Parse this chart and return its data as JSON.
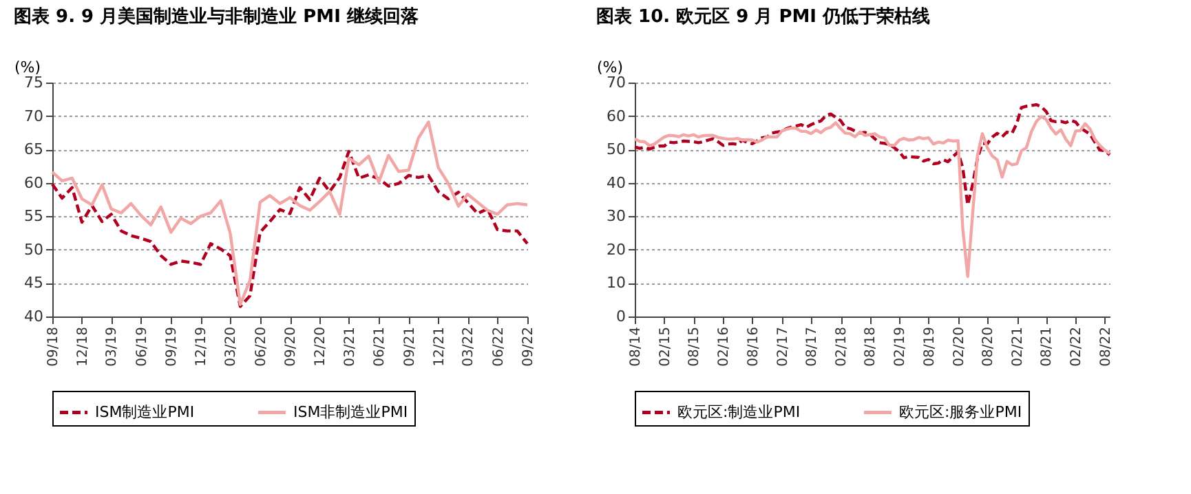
{
  "chart_data": [
    {
      "type": "line",
      "title": "图表 9. 9 月美国制造业与非制造业 PMI 继续回落",
      "ylabel": "(%)",
      "x": [
        "2018-09",
        "2018-10",
        "2018-11",
        "2018-12",
        "2019-01",
        "2019-02",
        "2019-03",
        "2019-04",
        "2019-05",
        "2019-06",
        "2019-07",
        "2019-08",
        "2019-09",
        "2019-10",
        "2019-11",
        "2019-12",
        "2020-01",
        "2020-02",
        "2020-03",
        "2020-04",
        "2020-05",
        "2020-06",
        "2020-07",
        "2020-08",
        "2020-09",
        "2020-10",
        "2020-11",
        "2020-12",
        "2021-01",
        "2021-02",
        "2021-03",
        "2021-04",
        "2021-05",
        "2021-06",
        "2021-07",
        "2021-08",
        "2021-09",
        "2021-10",
        "2021-11",
        "2021-12",
        "2022-01",
        "2022-02",
        "2022-03",
        "2022-04",
        "2022-05",
        "2022-06",
        "2022-07",
        "2022-08",
        "2022-09"
      ],
      "series": [
        {
          "name": "ISM制造业PMI",
          "color": "#b00020",
          "line_style": "dashed",
          "values": [
            59.8,
            57.7,
            59.3,
            54.1,
            56.6,
            54.2,
            55.3,
            52.8,
            52.1,
            51.7,
            51.2,
            49.1,
            47.8,
            48.3,
            48.1,
            47.8,
            50.9,
            50.1,
            49.1,
            41.5,
            43.1,
            52.6,
            54.2,
            56.0,
            55.4,
            59.3,
            57.5,
            60.7,
            58.7,
            60.8,
            64.7,
            60.7,
            61.2,
            60.6,
            59.5,
            59.9,
            61.1,
            60.8,
            61.1,
            58.7,
            57.6,
            58.6,
            57.1,
            55.4,
            56.1,
            53.0,
            52.8,
            52.8,
            50.9
          ]
        },
        {
          "name": "ISM非制造业PMI",
          "color": "#f2a7a7",
          "line_style": "solid",
          "values": [
            61.6,
            60.3,
            60.7,
            57.6,
            56.7,
            59.7,
            56.1,
            55.5,
            56.9,
            55.1,
            53.7,
            56.4,
            52.6,
            54.7,
            53.9,
            55.0,
            55.5,
            57.3,
            52.5,
            41.8,
            45.4,
            57.1,
            58.1,
            56.9,
            57.8,
            56.6,
            55.9,
            57.2,
            58.7,
            55.3,
            63.7,
            62.7,
            64.0,
            60.1,
            64.1,
            61.7,
            61.9,
            66.7,
            69.1,
            62.3,
            59.9,
            56.5,
            58.3,
            57.1,
            55.9,
            55.3,
            56.7,
            56.9,
            56.7
          ]
        }
      ],
      "xlim": [
        "2018-09",
        "2022-09"
      ],
      "xticks": [
        {
          "value": "2018-09",
          "label": "09/18"
        },
        {
          "value": "2018-12",
          "label": "12/18"
        },
        {
          "value": "2019-03",
          "label": "03/19"
        },
        {
          "value": "2019-06",
          "label": "06/19"
        },
        {
          "value": "2019-09",
          "label": "09/19"
        },
        {
          "value": "2019-12",
          "label": "12/19"
        },
        {
          "value": "2020-03",
          "label": "03/20"
        },
        {
          "value": "2020-06",
          "label": "06/20"
        },
        {
          "value": "2020-09",
          "label": "09/20"
        },
        {
          "value": "2020-12",
          "label": "12/20"
        },
        {
          "value": "2021-03",
          "label": "03/21"
        },
        {
          "value": "2021-06",
          "label": "06/21"
        },
        {
          "value": "2021-09",
          "label": "09/21"
        },
        {
          "value": "2021-12",
          "label": "12/21"
        },
        {
          "value": "2022-03",
          "label": "03/22"
        },
        {
          "value": "2022-06",
          "label": "06/22"
        },
        {
          "value": "2022-09",
          "label": "09/22"
        }
      ],
      "ylim": [
        40,
        75
      ],
      "yticks": [
        40,
        45,
        50,
        55,
        60,
        65,
        70,
        75
      ],
      "grid": "y",
      "legend": "bottom",
      "marker": "none"
    },
    {
      "type": "line",
      "title": "图表 10. 欧元区 9 月 PMI 仍低于荣枯线",
      "ylabel": "(%)",
      "x": [
        "2014-08",
        "2014-09",
        "2014-10",
        "2014-11",
        "2014-12",
        "2015-01",
        "2015-02",
        "2015-03",
        "2015-04",
        "2015-05",
        "2015-06",
        "2015-07",
        "2015-08",
        "2015-09",
        "2015-10",
        "2015-11",
        "2015-12",
        "2016-01",
        "2016-02",
        "2016-03",
        "2016-04",
        "2016-05",
        "2016-06",
        "2016-07",
        "2016-08",
        "2016-09",
        "2016-10",
        "2016-11",
        "2016-12",
        "2017-01",
        "2017-02",
        "2017-03",
        "2017-04",
        "2017-05",
        "2017-06",
        "2017-07",
        "2017-08",
        "2017-09",
        "2017-10",
        "2017-11",
        "2017-12",
        "2018-01",
        "2018-02",
        "2018-03",
        "2018-04",
        "2018-05",
        "2018-06",
        "2018-07",
        "2018-08",
        "2018-09",
        "2018-10",
        "2018-11",
        "2018-12",
        "2019-01",
        "2019-02",
        "2019-03",
        "2019-04",
        "2019-05",
        "2019-06",
        "2019-07",
        "2019-08",
        "2019-09",
        "2019-10",
        "2019-11",
        "2019-12",
        "2020-01",
        "2020-02",
        "2020-03",
        "2020-04",
        "2020-05",
        "2020-06",
        "2020-07",
        "2020-08",
        "2020-09",
        "2020-10",
        "2020-11",
        "2020-12",
        "2021-01",
        "2021-02",
        "2021-03",
        "2021-04",
        "2021-05",
        "2021-06",
        "2021-07",
        "2021-08",
        "2021-09",
        "2021-10",
        "2021-11",
        "2021-12",
        "2022-01",
        "2022-02",
        "2022-03",
        "2022-04",
        "2022-05",
        "2022-06",
        "2022-07",
        "2022-08",
        "2022-09"
      ],
      "series": [
        {
          "name": "欧元区:制造业PMI",
          "color": "#b00020",
          "line_style": "dashed",
          "values": [
            50.7,
            50.3,
            50.6,
            50.1,
            50.6,
            51.0,
            51.0,
            52.2,
            52.0,
            52.2,
            52.5,
            52.4,
            52.3,
            52.0,
            52.3,
            52.8,
            53.2,
            52.3,
            51.2,
            51.6,
            51.7,
            51.5,
            52.8,
            52.0,
            51.7,
            52.6,
            53.5,
            53.7,
            54.9,
            55.2,
            55.4,
            56.2,
            56.7,
            57.0,
            57.4,
            56.6,
            57.4,
            58.1,
            58.5,
            60.1,
            60.6,
            59.6,
            58.6,
            56.6,
            56.2,
            55.5,
            54.9,
            55.1,
            54.6,
            53.2,
            52.0,
            51.8,
            51.4,
            50.5,
            49.3,
            47.5,
            47.9,
            47.7,
            47.6,
            46.5,
            47.0,
            45.7,
            45.9,
            46.9,
            46.3,
            47.9,
            49.2,
            44.5,
            33.4,
            39.4,
            47.4,
            51.8,
            51.7,
            53.7,
            54.8,
            53.8,
            55.2,
            54.8,
            57.9,
            62.5,
            62.9,
            63.1,
            63.4,
            62.8,
            61.4,
            58.6,
            58.3,
            58.4,
            58.0,
            58.7,
            58.2,
            56.5,
            55.5,
            54.6,
            52.1,
            49.8,
            49.6,
            48.4
          ]
        },
        {
          "name": "欧元区:服务业PMI",
          "color": "#f2a7a7",
          "line_style": "solid",
          "values": [
            53.1,
            52.4,
            52.3,
            51.1,
            51.6,
            52.7,
            53.7,
            54.2,
            54.1,
            53.8,
            54.4,
            54.0,
            54.4,
            53.7,
            54.1,
            54.2,
            54.2,
            53.6,
            53.3,
            53.1,
            53.1,
            53.3,
            52.8,
            52.9,
            52.8,
            52.2,
            52.8,
            53.8,
            53.7,
            53.7,
            55.5,
            56.0,
            56.4,
            56.3,
            55.4,
            55.4,
            54.7,
            55.8,
            55.0,
            56.2,
            56.6,
            58.0,
            56.2,
            54.9,
            54.7,
            53.8,
            55.2,
            54.2,
            54.4,
            54.7,
            53.7,
            53.4,
            51.2,
            51.2,
            52.8,
            53.3,
            52.8,
            52.9,
            53.6,
            53.2,
            53.5,
            51.6,
            52.2,
            51.9,
            52.8,
            52.5,
            52.6,
            26.4,
            12.0,
            30.5,
            48.3,
            54.7,
            50.5,
            48.0,
            46.9,
            41.7,
            46.4,
            45.4,
            45.7,
            49.6,
            50.5,
            55.2,
            58.3,
            59.8,
            59.0,
            56.4,
            54.6,
            55.9,
            53.1,
            51.1,
            55.5,
            55.6,
            57.7,
            56.1,
            53.0,
            51.2,
            49.8,
            48.8
          ]
        }
      ],
      "xlim": [
        "2014-08",
        "2022-09"
      ],
      "xticks": [
        {
          "value": "2014-08",
          "label": "08/14"
        },
        {
          "value": "2015-02",
          "label": "02/15"
        },
        {
          "value": "2015-08",
          "label": "08/15"
        },
        {
          "value": "2016-02",
          "label": "02/16"
        },
        {
          "value": "2016-08",
          "label": "08/16"
        },
        {
          "value": "2017-02",
          "label": "02/17"
        },
        {
          "value": "2017-08",
          "label": "08/17"
        },
        {
          "value": "2018-02",
          "label": "02/18"
        },
        {
          "value": "2018-08",
          "label": "08/18"
        },
        {
          "value": "2019-02",
          "label": "02/19"
        },
        {
          "value": "2019-08",
          "label": "08/19"
        },
        {
          "value": "2020-02",
          "label": "02/20"
        },
        {
          "value": "2020-08",
          "label": "08/20"
        },
        {
          "value": "2021-02",
          "label": "02/21"
        },
        {
          "value": "2021-08",
          "label": "08/21"
        },
        {
          "value": "2022-02",
          "label": "02/22"
        },
        {
          "value": "2022-08",
          "label": "08/22"
        }
      ],
      "ylim": [
        0,
        70
      ],
      "yticks": [
        0,
        10,
        20,
        30,
        40,
        50,
        60,
        70
      ],
      "grid": "y",
      "legend": "bottom",
      "marker": "none"
    }
  ]
}
